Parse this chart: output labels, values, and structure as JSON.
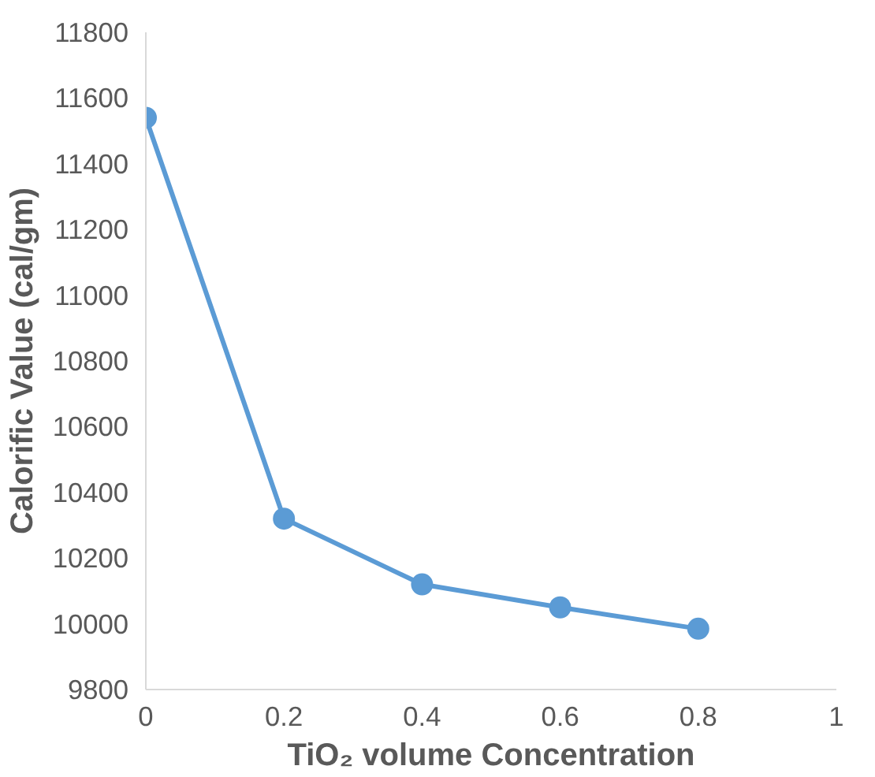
{
  "chart_data": {
    "type": "line",
    "xlabel": "TiO₂ volume Concentration",
    "ylabel": "Calorific Value (cal/gm)",
    "x": [
      0,
      0.2,
      0.4,
      0.6,
      0.8
    ],
    "series": [
      {
        "color": "#5b9bd5",
        "values": [
          11540,
          10320,
          10120,
          10050,
          9985
        ]
      }
    ],
    "xlim": [
      0,
      1
    ],
    "xticks": [
      0,
      0.2,
      0.4,
      0.6,
      0.8,
      1
    ],
    "ylim": [
      9800,
      11800
    ],
    "yticks": [
      9800,
      10000,
      10200,
      10400,
      10600,
      10800,
      11000,
      11200,
      11400,
      11600,
      11800
    ],
    "grid": false,
    "marker": "circle",
    "line_style": "solid"
  }
}
